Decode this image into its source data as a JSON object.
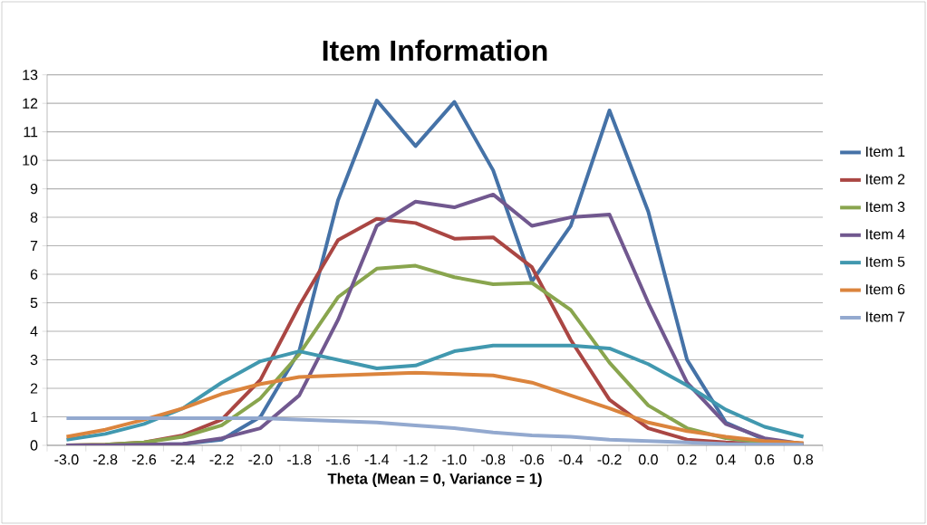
{
  "chart_data": {
    "type": "line",
    "title": "Item Information",
    "xlabel": "Theta (Mean = 0, Variance = 1)",
    "categories": [
      "-3.0",
      "-2.8",
      "-2.6",
      "-2.4",
      "-2.2",
      "-2.0",
      "-1.8",
      "-1.6",
      "-1.4",
      "-1.2",
      "-1.0",
      "-0.8",
      "-0.6",
      "-0.4",
      "-0.2",
      "0.0",
      "0.2",
      "0.4",
      "0.6",
      "0.8"
    ],
    "ylim": [
      0,
      13
    ],
    "yticks": [
      0,
      1,
      2,
      3,
      4,
      5,
      6,
      7,
      8,
      9,
      10,
      11,
      12,
      13
    ],
    "grid": "y",
    "legend": "right",
    "marker": "none",
    "series": [
      {
        "name": "Item 1",
        "color": "#4572a7",
        "values": [
          0,
          0,
          0.02,
          0.05,
          0.2,
          1.0,
          3.3,
          8.6,
          12.1,
          10.5,
          12.05,
          9.65,
          5.75,
          7.7,
          11.75,
          8.2,
          3.0,
          0.8,
          0.2,
          0.05
        ]
      },
      {
        "name": "Item 2",
        "color": "#aa4643",
        "values": [
          0,
          0.02,
          0.1,
          0.35,
          0.9,
          2.3,
          4.9,
          7.2,
          7.95,
          7.8,
          7.25,
          7.3,
          6.25,
          3.7,
          1.6,
          0.6,
          0.2,
          0.1,
          0.05,
          0.02
        ]
      },
      {
        "name": "Item 3",
        "color": "#89a54e",
        "values": [
          0,
          0.02,
          0.1,
          0.3,
          0.7,
          1.65,
          3.2,
          5.2,
          6.2,
          6.3,
          5.9,
          5.65,
          5.7,
          4.75,
          2.9,
          1.4,
          0.6,
          0.25,
          0.1,
          0.05
        ]
      },
      {
        "name": "Item 4",
        "color": "#71588f",
        "values": [
          0,
          0,
          0.02,
          0.05,
          0.25,
          0.6,
          1.75,
          4.4,
          7.7,
          8.55,
          8.35,
          8.8,
          7.7,
          8.0,
          8.1,
          5.0,
          2.2,
          0.75,
          0.25,
          0.05
        ]
      },
      {
        "name": "Item 5",
        "color": "#4198af",
        "values": [
          0.2,
          0.4,
          0.75,
          1.3,
          2.2,
          2.95,
          3.3,
          3.0,
          2.7,
          2.8,
          3.3,
          3.5,
          3.5,
          3.5,
          3.4,
          2.85,
          2.1,
          1.25,
          0.65,
          0.3
        ]
      },
      {
        "name": "Item 6",
        "color": "#db843d",
        "values": [
          0.3,
          0.55,
          0.9,
          1.3,
          1.8,
          2.15,
          2.4,
          2.45,
          2.5,
          2.55,
          2.5,
          2.45,
          2.2,
          1.75,
          1.3,
          0.8,
          0.5,
          0.3,
          0.15,
          0.08
        ]
      },
      {
        "name": "Item 7",
        "color": "#93a9cf",
        "values": [
          0.95,
          0.95,
          0.95,
          0.95,
          0.95,
          0.95,
          0.9,
          0.85,
          0.8,
          0.7,
          0.6,
          0.45,
          0.35,
          0.3,
          0.2,
          0.15,
          0.1,
          0.05,
          0.03,
          0.02
        ]
      }
    ]
  }
}
